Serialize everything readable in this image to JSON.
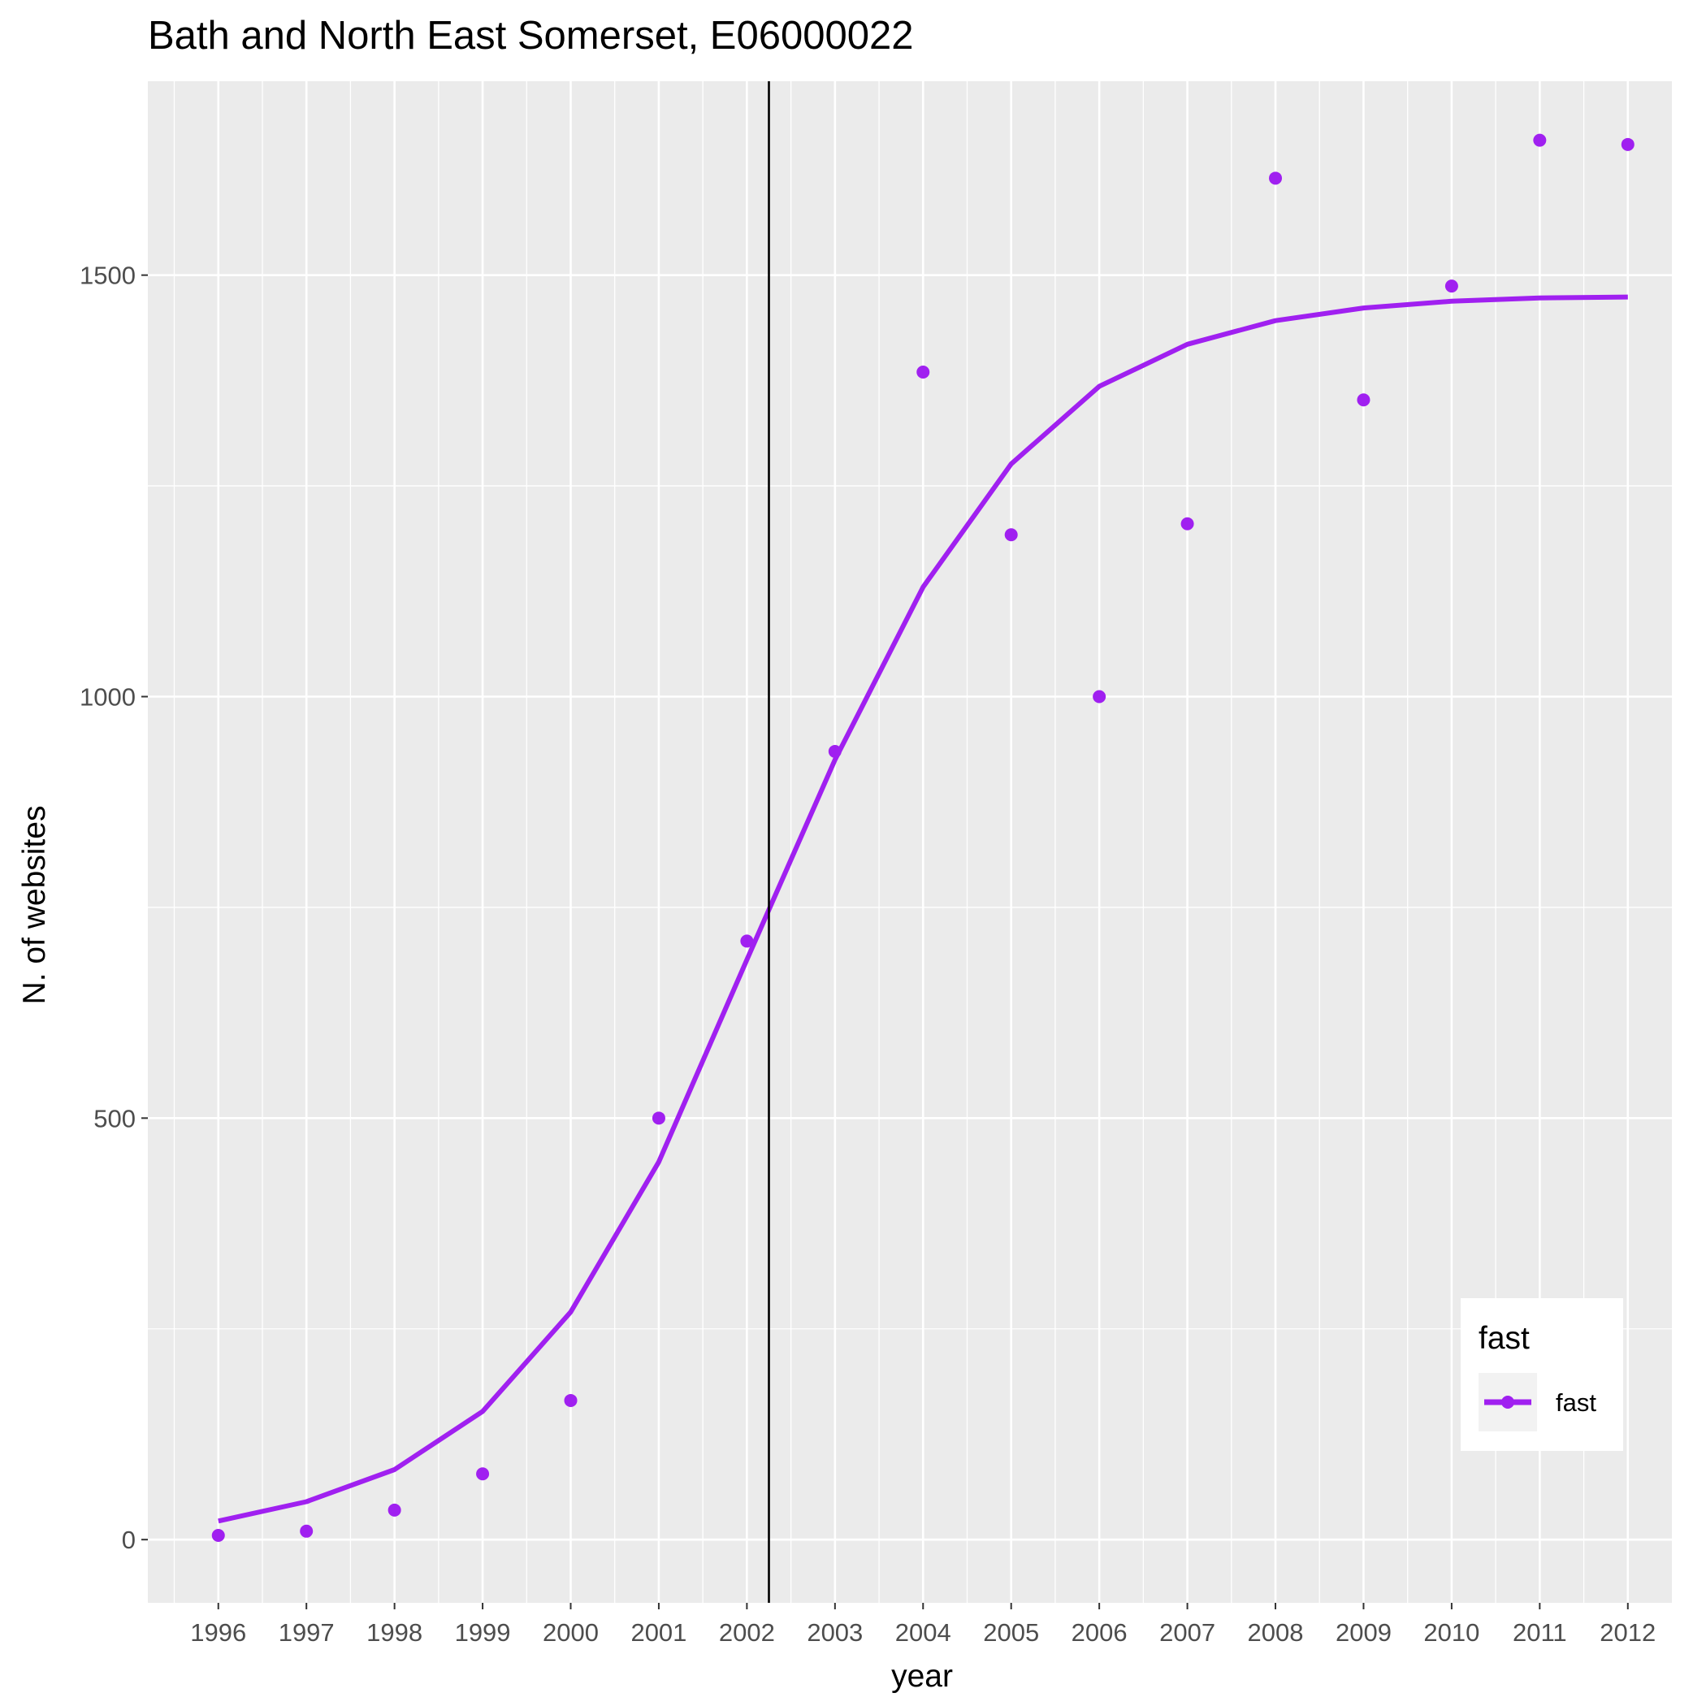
{
  "chart_data": {
    "type": "line",
    "title": "Bath and North East Somerset, E06000022",
    "xlabel": "year",
    "ylabel": "N. of websites",
    "x": [
      1996,
      1997,
      1998,
      1999,
      2000,
      2001,
      2002,
      2003,
      2004,
      2005,
      2006,
      2007,
      2008,
      2009,
      2010,
      2011,
      2012
    ],
    "x_tick_labels": [
      "1996",
      "1997",
      "1998",
      "1999",
      "2000",
      "2001",
      "2002",
      "2003",
      "2004",
      "2005",
      "2006",
      "2007",
      "2008",
      "2009",
      "2010",
      "2011",
      "2012"
    ],
    "y_ticks": [
      0,
      500,
      1000,
      1500
    ],
    "y_tick_labels": [
      "0",
      "500",
      "1000",
      "1500"
    ],
    "xlim": [
      1995.2,
      2012.5
    ],
    "ylim": [
      -75,
      1730
    ],
    "series": [
      {
        "name": "fast",
        "color": "#a020f0",
        "points": [
          5,
          10,
          35,
          78,
          165,
          500,
          710,
          935,
          1385,
          1192,
          1000,
          1205,
          1615,
          1352,
          1487,
          1660,
          1655
        ],
        "fitted": [
          22,
          45,
          83,
          152,
          270,
          448,
          688,
          925,
          1130,
          1276,
          1368,
          1418,
          1446,
          1461,
          1469,
          1473,
          1474
        ]
      }
    ],
    "vline_x": 2002.25,
    "vline_color": "#000000",
    "grid": true,
    "legend": {
      "title": "fast",
      "entries": [
        "fast"
      ],
      "position": "bottom-right"
    }
  }
}
